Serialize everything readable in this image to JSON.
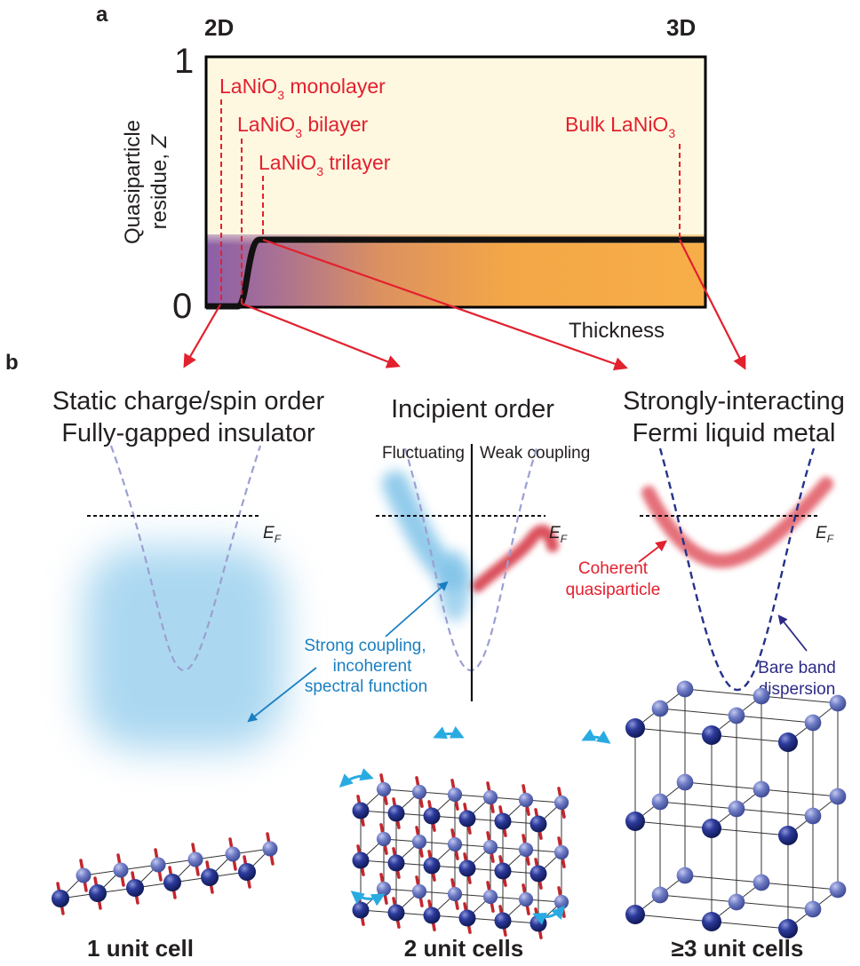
{
  "panel_a": {
    "label": "a",
    "left_dim": "2D",
    "right_dim": "3D",
    "y_max": "1",
    "y_min": "0",
    "y_label_line1": "Quasiparticle",
    "y_label_line2": "residue, ",
    "y_label_var": "Z",
    "x_label": "Thickness",
    "annotations": {
      "mono_a": "LaNiO",
      "mono_sub": "3",
      "mono_b": " monolayer",
      "bi_a": "LaNiO",
      "bi_sub": "3",
      "bi_b": " bilayer",
      "tri_a": "LaNiO",
      "tri_sub": "3",
      "tri_b": " trilayer",
      "bulk_a": "Bulk LaNiO",
      "bulk_sub": "3"
    }
  },
  "panel_b": {
    "label": "b",
    "col1_title_line1": "Static charge/spin order",
    "col1_title_line2": "Fully-gapped insulator",
    "col2_title": "Incipient order",
    "col2_left": "Fluctuating",
    "col2_right": "Weak coupling",
    "col3_title_line1": "Strongly-interacting",
    "col3_title_line2": "Fermi liquid metal",
    "ef_main": "E",
    "ef_sub": "F",
    "blue_note_l1": "Strong coupling,",
    "blue_note_l2": "incoherent",
    "blue_note_l3": "spectral function",
    "red_note_l1": "Coherent",
    "red_note_l2": "quasiparticle",
    "navy_note_l1": "Bare band",
    "navy_note_l2": "dispersion",
    "cap1": "1 unit cell",
    "cap2": "2 unit cells",
    "cap3": "≥3 unit cells"
  },
  "colors": {
    "annotation_red": "#e2202e",
    "plot_background": "#fff8e1",
    "orange": "#f7a941",
    "purple": "#8b5fa8",
    "incoherent_blue": "#8fcbec",
    "atom_navy": "#26338a",
    "arrow_cyan": "#29abe2"
  }
}
